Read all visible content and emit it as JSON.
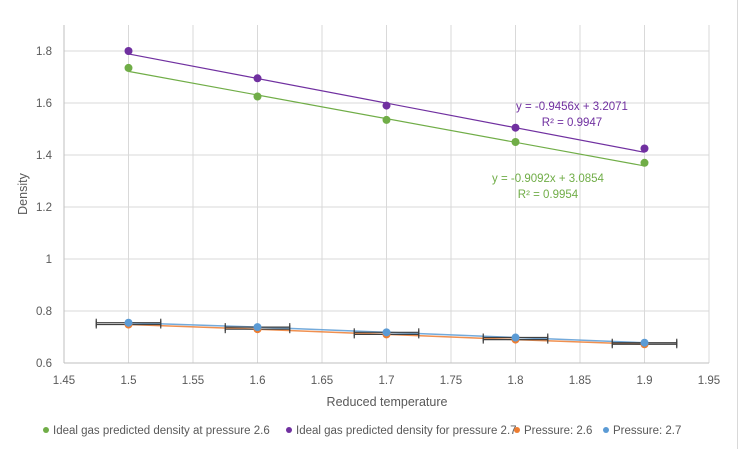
{
  "chart_data": {
    "type": "scatter",
    "title": "",
    "xlabel": "Reduced temperature",
    "ylabel": "Density",
    "xlim": [
      1.45,
      1.95
    ],
    "ylim": [
      0.6,
      1.9
    ],
    "x_ticks": [
      "1.45",
      "1.5",
      "1.55",
      "1.6",
      "1.65",
      "1.7",
      "1.75",
      "1.8",
      "1.85",
      "1.9",
      "1.95"
    ],
    "x_tick_values": [
      1.45,
      1.5,
      1.55,
      1.6,
      1.65,
      1.7,
      1.75,
      1.8,
      1.85,
      1.9,
      1.95
    ],
    "y_ticks": [
      "0.6",
      "0.8",
      "1",
      "1.2",
      "1.4",
      "1.6",
      "1.8"
    ],
    "y_tick_values": [
      0.6,
      0.8,
      1.0,
      1.2,
      1.4,
      1.6,
      1.8
    ],
    "grid": true,
    "legend_position": "bottom",
    "x": [
      1.5,
      1.6,
      1.7,
      1.8,
      1.9
    ],
    "series": [
      {
        "name": "Ideal gas predicted density at pressure 2.6",
        "color": "#70ad47",
        "values": [
          1.735,
          1.625,
          1.535,
          1.45,
          1.37
        ],
        "trendline": {
          "slope": -0.9092,
          "intercept": 3.0854,
          "equation": "y = -0.9092x + 3.0854",
          "r2": "R² = 0.9954"
        }
      },
      {
        "name": "Ideal gas predicted density for pressure 2.7",
        "color": "#7030a0",
        "values": [
          1.8,
          1.695,
          1.59,
          1.505,
          1.425
        ],
        "trendline": {
          "slope": -0.9456,
          "intercept": 3.2071,
          "equation": "y = -0.9456x + 3.2071",
          "r2": "R² = 0.9947"
        }
      },
      {
        "name": "Pressure: 2.6",
        "color": "#ed7d31",
        "values": [
          0.748,
          0.73,
          0.71,
          0.69,
          0.672
        ],
        "x_error": 0.025,
        "connected": true
      },
      {
        "name": "Pressure: 2.7",
        "color": "#5b9bd5",
        "values": [
          0.755,
          0.738,
          0.718,
          0.698,
          0.678
        ],
        "x_error": 0.025,
        "connected": true
      }
    ]
  }
}
